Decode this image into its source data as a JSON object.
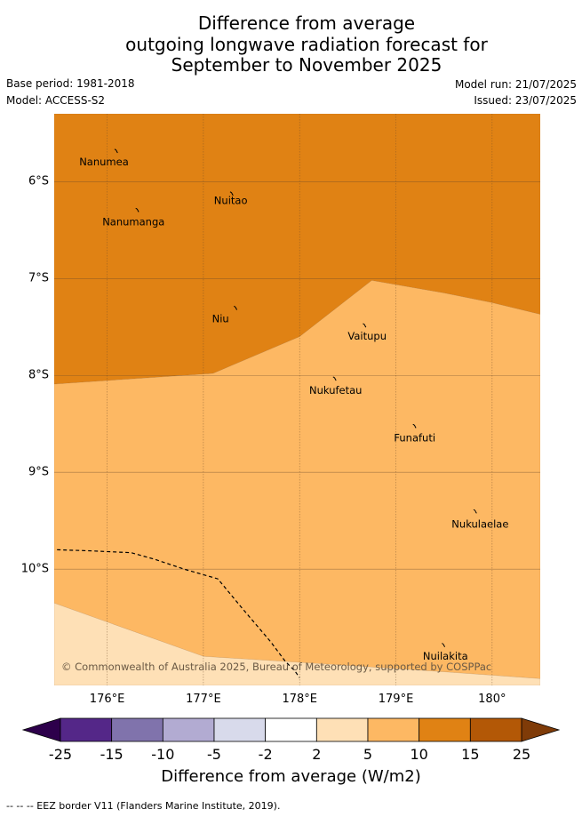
{
  "title_lines": [
    "Difference from average",
    "outgoing longwave radiation forecast for",
    "September to November 2025"
  ],
  "meta": {
    "base_period": "Base period: 1981-2018",
    "model": "Model: ACCESS-S2",
    "model_run": "Model run: 21/07/2025",
    "issued": "Issued: 23/07/2025"
  },
  "map": {
    "extent": {
      "lon_min": 175.45,
      "lon_max": 180.5,
      "lat_min": -11.2,
      "lat_max": -5.3
    },
    "y_ticks": [
      {
        "label": "6°S",
        "lat": -6
      },
      {
        "label": "7°S",
        "lat": -7
      },
      {
        "label": "8°S",
        "lat": -8
      },
      {
        "label": "9°S",
        "lat": -9
      },
      {
        "label": "10°S",
        "lat": -10
      }
    ],
    "x_ticks": [
      {
        "label": "176°E",
        "lon": 176
      },
      {
        "label": "177°E",
        "lon": 177
      },
      {
        "label": "178°E",
        "lon": 178
      },
      {
        "label": "179°E",
        "lon": 179
      },
      {
        "label": "180°",
        "lon": 180
      }
    ],
    "zones": [
      {
        "category": "10 to 15",
        "color": "#e08214",
        "points": [
          [
            175.45,
            -5.3
          ],
          [
            180.5,
            -5.3
          ],
          [
            180.5,
            -7.37
          ],
          [
            180.0,
            -7.25
          ],
          [
            179.5,
            -7.15
          ],
          [
            178.75,
            -7.02
          ],
          [
            178.0,
            -7.6
          ],
          [
            177.1,
            -7.98
          ],
          [
            175.45,
            -8.09
          ]
        ]
      },
      {
        "category": "5 to 10",
        "color": "#fdb863",
        "points": [
          [
            175.45,
            -8.09
          ],
          [
            177.1,
            -7.98
          ],
          [
            178.0,
            -7.6
          ],
          [
            178.75,
            -7.02
          ],
          [
            179.5,
            -7.15
          ],
          [
            180.0,
            -7.25
          ],
          [
            180.5,
            -7.37
          ],
          [
            180.5,
            -11.13
          ],
          [
            179.5,
            -11.06
          ],
          [
            178.6,
            -11.0
          ],
          [
            177.0,
            -10.9
          ],
          [
            175.45,
            -10.35
          ]
        ]
      },
      {
        "category": "2 to 5",
        "color": "#fee0b6",
        "points": [
          [
            175.45,
            -10.35
          ],
          [
            177.0,
            -10.9
          ],
          [
            178.6,
            -11.0
          ],
          [
            179.5,
            -11.06
          ],
          [
            180.5,
            -11.13
          ],
          [
            180.5,
            -11.2
          ],
          [
            175.45,
            -11.2
          ]
        ]
      }
    ],
    "eez_border": [
      [
        175.48,
        -9.8
      ],
      [
        175.8,
        -9.81
      ],
      [
        176.25,
        -9.83
      ],
      [
        176.5,
        -9.9
      ],
      [
        176.8,
        -10.0
      ],
      [
        177.15,
        -10.1
      ],
      [
        177.4,
        -10.4
      ],
      [
        177.7,
        -10.75
      ],
      [
        177.85,
        -10.95
      ],
      [
        177.95,
        -11.05
      ],
      [
        178.0,
        -11.12
      ]
    ],
    "islands": [
      {
        "name": "Nanumea",
        "lon": 176.1,
        "lat": -5.68,
        "label_lon": 175.71,
        "label_lat": -5.75
      },
      {
        "name": "Nuitao",
        "lon": 177.3,
        "lat": -6.12,
        "label_lon": 177.11,
        "label_lat": -6.15
      },
      {
        "name": "Nanumanga",
        "lon": 176.32,
        "lat": -6.29,
        "label_lon": 175.95,
        "label_lat": -6.37
      },
      {
        "name": "Niu",
        "lon": 177.34,
        "lat": -7.3,
        "label_lon": 177.09,
        "label_lat": -7.37
      },
      {
        "name": "Vaitupu",
        "lon": 178.68,
        "lat": -7.48,
        "label_lon": 178.5,
        "label_lat": -7.55
      },
      {
        "name": "Nukufetau",
        "lon": 178.37,
        "lat": -8.03,
        "label_lon": 178.1,
        "label_lat": -8.11
      },
      {
        "name": "Funafuti",
        "lon": 179.2,
        "lat": -8.52,
        "label_lon": 178.98,
        "label_lat": -8.6
      },
      {
        "name": "Nukulaelae",
        "lon": 179.83,
        "lat": -9.4,
        "label_lon": 179.58,
        "label_lat": -9.49
      },
      {
        "name": "Nuilakita",
        "lon": 179.5,
        "lat": -10.78,
        "label_lon": 179.28,
        "label_lat": -10.85
      }
    ],
    "copyright": "© Commonwealth of Australia 2025, Bureau of Meteorology, supported by COSPPac"
  },
  "colorbar": {
    "boundaries": [
      "-25",
      "-15",
      "-10",
      "-5",
      "-2",
      "2",
      "5",
      "10",
      "15",
      "25"
    ],
    "under_color": "#2d004b",
    "over_color": "#7f3b08",
    "colors": [
      "#542788",
      "#8073ac",
      "#b2abd2",
      "#d8daeb",
      "#ffffff",
      "#fee0b6",
      "#fdb863",
      "#e08214",
      "#b35806"
    ],
    "label": "Difference from average (W/m2)"
  },
  "footnote": "-- -- -- EEZ border V11 (Flanders Marine Institute, 2019)."
}
